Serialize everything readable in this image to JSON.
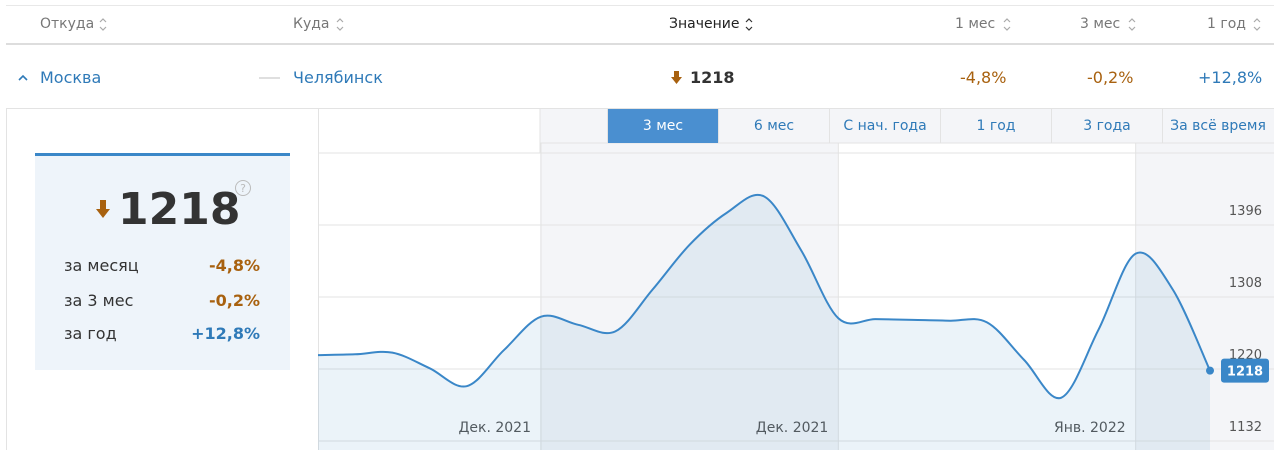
{
  "table": {
    "headers": [
      "Откуда",
      "Куда",
      "Значение",
      "1 мес",
      "3 мес",
      "1 год"
    ],
    "row": {
      "from": "Москва",
      "to": "Челябинск",
      "value": "1218",
      "m1": "-4,8%",
      "m3": "-0,2%",
      "y1": "+12,8%"
    }
  },
  "card": {
    "value": "1218",
    "rows": [
      {
        "label": "за месяц",
        "value": "-4,8%"
      },
      {
        "label": "за 3 мес",
        "value": "-0,2%"
      },
      {
        "label": "за год",
        "value": "+12,8%"
      }
    ]
  },
  "tabs": [
    "3 мес",
    "6 мес",
    "С нач. года",
    "1 год",
    "3 года",
    "За всё время"
  ],
  "active_tab": 0,
  "chart_data": {
    "type": "line",
    "categories": [
      null,
      null,
      null,
      null,
      null,
      null,
      "Дек. 2021",
      null,
      null,
      null,
      null,
      null,
      null,
      null,
      "Дек. 2021",
      null,
      null,
      null,
      null,
      null,
      null,
      null,
      "Янв. 2022",
      null,
      null
    ],
    "values": [
      1237,
      1238,
      1240,
      1221,
      1199,
      1243,
      1284,
      1274,
      1266,
      1317,
      1372,
      1411,
      1431,
      1365,
      1282,
      1281,
      1280,
      1279,
      1277,
      1231,
      1185,
      1268,
      1361,
      1317,
      1218
    ],
    "color": "#3a87c8",
    "ylim": [
      1132,
      1484
    ],
    "yticks": [
      1132,
      1220,
      1308,
      1396
    ],
    "grid": true
  }
}
